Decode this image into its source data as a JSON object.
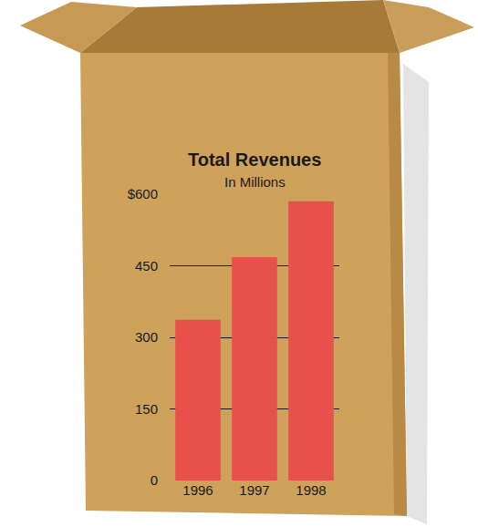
{
  "chart_data": {
    "type": "bar",
    "title": "Total Revenues",
    "subtitle": "In Millions",
    "categories": [
      "1996",
      "1997",
      "1998"
    ],
    "values": [
      337,
      468,
      585
    ],
    "color": "#e8504c",
    "ylim": [
      0,
      600
    ],
    "yticks": [
      0,
      150,
      300,
      450,
      {
        "value": 600,
        "label": "$600"
      }
    ],
    "grid": true
  }
}
